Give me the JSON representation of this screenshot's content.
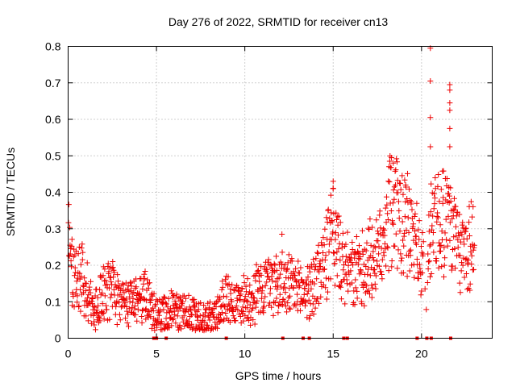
{
  "chart_data": {
    "type": "scatter",
    "title": "Day 276 of 2022, SRMTID for receiver cn13",
    "xlabel": "GPS time / hours",
    "ylabel": "SRMTID / TECUs",
    "xlim": [
      0,
      24
    ],
    "ylim": [
      0,
      0.8
    ],
    "grid": true,
    "marker": "plus",
    "series_color": "#ee0000",
    "x_ticks": [
      0,
      5,
      10,
      15,
      20
    ],
    "x_tick_labels": [
      "0",
      "5",
      "10",
      "15",
      "20"
    ],
    "y_ticks": [
      0,
      0.1,
      0.2,
      0.3,
      0.4,
      0.5,
      0.6,
      0.7,
      0.8
    ],
    "y_tick_labels": [
      "0",
      "0.1",
      "0.2",
      "0.3",
      "0.4",
      "0.5",
      "0.6",
      "0.7",
      "0.8"
    ],
    "trend": [
      [
        0.0,
        0.26
      ],
      [
        0.3,
        0.16
      ],
      [
        0.8,
        0.17
      ],
      [
        1.2,
        0.12
      ],
      [
        1.5,
        0.08
      ],
      [
        2.0,
        0.12
      ],
      [
        2.5,
        0.13
      ],
      [
        3.0,
        0.1
      ],
      [
        3.5,
        0.11
      ],
      [
        4.0,
        0.1
      ],
      [
        4.5,
        0.11
      ],
      [
        5.0,
        0.08
      ],
      [
        5.5,
        0.07
      ],
      [
        6.0,
        0.08
      ],
      [
        6.5,
        0.07
      ],
      [
        7.0,
        0.06
      ],
      [
        7.5,
        0.06
      ],
      [
        8.0,
        0.05
      ],
      [
        8.5,
        0.07
      ],
      [
        9.0,
        0.12
      ],
      [
        9.5,
        0.09
      ],
      [
        10.0,
        0.11
      ],
      [
        10.5,
        0.12
      ],
      [
        11.0,
        0.14
      ],
      [
        11.5,
        0.16
      ],
      [
        12.0,
        0.15
      ],
      [
        12.5,
        0.14
      ],
      [
        13.0,
        0.13
      ],
      [
        13.5,
        0.13
      ],
      [
        14.0,
        0.15
      ],
      [
        14.5,
        0.22
      ],
      [
        15.0,
        0.28
      ],
      [
        15.5,
        0.2
      ],
      [
        16.0,
        0.17
      ],
      [
        16.5,
        0.18
      ],
      [
        17.0,
        0.22
      ],
      [
        17.5,
        0.21
      ],
      [
        18.0,
        0.33
      ],
      [
        18.4,
        0.38
      ],
      [
        18.8,
        0.32
      ],
      [
        19.2,
        0.3
      ],
      [
        19.6,
        0.28
      ],
      [
        20.0,
        0.2
      ],
      [
        20.3,
        0.16
      ],
      [
        20.6,
        0.35
      ],
      [
        21.0,
        0.32
      ],
      [
        21.4,
        0.36
      ],
      [
        21.8,
        0.28
      ],
      [
        22.2,
        0.22
      ],
      [
        22.6,
        0.26
      ],
      [
        23.0,
        0.27
      ]
    ],
    "outliers": [
      [
        20.5,
        0.795
      ],
      [
        20.5,
        0.705
      ],
      [
        20.5,
        0.605
      ],
      [
        20.5,
        0.525
      ],
      [
        21.6,
        0.695
      ],
      [
        21.6,
        0.68
      ],
      [
        21.6,
        0.645
      ],
      [
        21.6,
        0.625
      ],
      [
        21.6,
        0.575
      ],
      [
        21.6,
        0.525
      ],
      [
        18.3,
        0.495
      ],
      [
        18.4,
        0.48
      ],
      [
        15.0,
        0.43
      ],
      [
        15.0,
        0.41
      ],
      [
        12.1,
        0.285
      ]
    ],
    "zero_markers": [
      4.85,
      5.0,
      5.55,
      8.95,
      12.15,
      13.3,
      13.65,
      15.6,
      15.8,
      19.75,
      20.3,
      20.55,
      21.65
    ]
  }
}
